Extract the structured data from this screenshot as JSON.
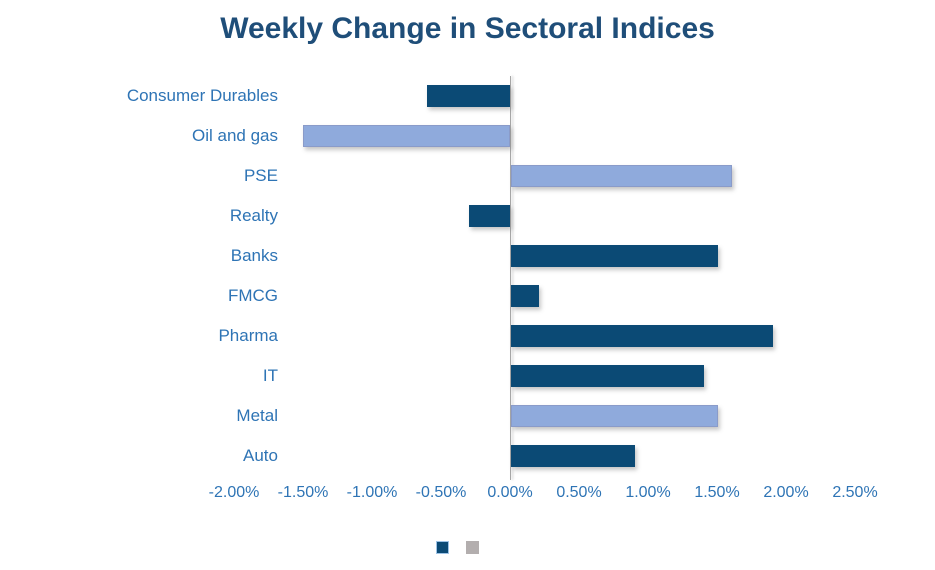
{
  "chart_data": {
    "type": "bar",
    "orientation": "horizontal",
    "title": "Weekly Change in Sectoral Indices",
    "categories": [
      "Consumer Durables",
      "Oil and gas",
      "PSE",
      "Realty",
      "Banks",
      "FMCG",
      "Pharma",
      "IT",
      "Metal",
      "Auto"
    ],
    "values": [
      -0.6,
      -1.5,
      1.6,
      -0.3,
      1.5,
      0.2,
      1.9,
      1.4,
      1.5,
      0.9
    ],
    "value_unit": "%",
    "bar_color_keys": [
      "dark",
      "light",
      "light",
      "dark",
      "dark",
      "dark",
      "dark",
      "dark",
      "light",
      "dark"
    ],
    "x_tick_labels": [
      "-2.00%",
      "-1.50%",
      "-1.00%",
      "-0.50%",
      "0.00%",
      "0.50%",
      "1.00%",
      "1.50%",
      "2.00%",
      "2.50%"
    ],
    "x_tick_values": [
      -2.0,
      -1.5,
      -1.0,
      -0.5,
      0.0,
      0.5,
      1.0,
      1.5,
      2.0,
      2.5
    ],
    "xlim": [
      -2.0,
      2.5
    ],
    "grid": false,
    "legend": {
      "position": "bottom",
      "entries": [
        {
          "label": "",
          "color": "#0B4A75",
          "border": "#9DC3E6"
        },
        {
          "label": "",
          "color": "#B3AEAE",
          "border": "#B3AEAE"
        }
      ]
    }
  },
  "colors": {
    "dark": "#0B4A75",
    "light": "#8FAADC",
    "title": "#1F4E79",
    "axis_labels": "#2E74B5",
    "axis_line": "#A6A6A6"
  }
}
